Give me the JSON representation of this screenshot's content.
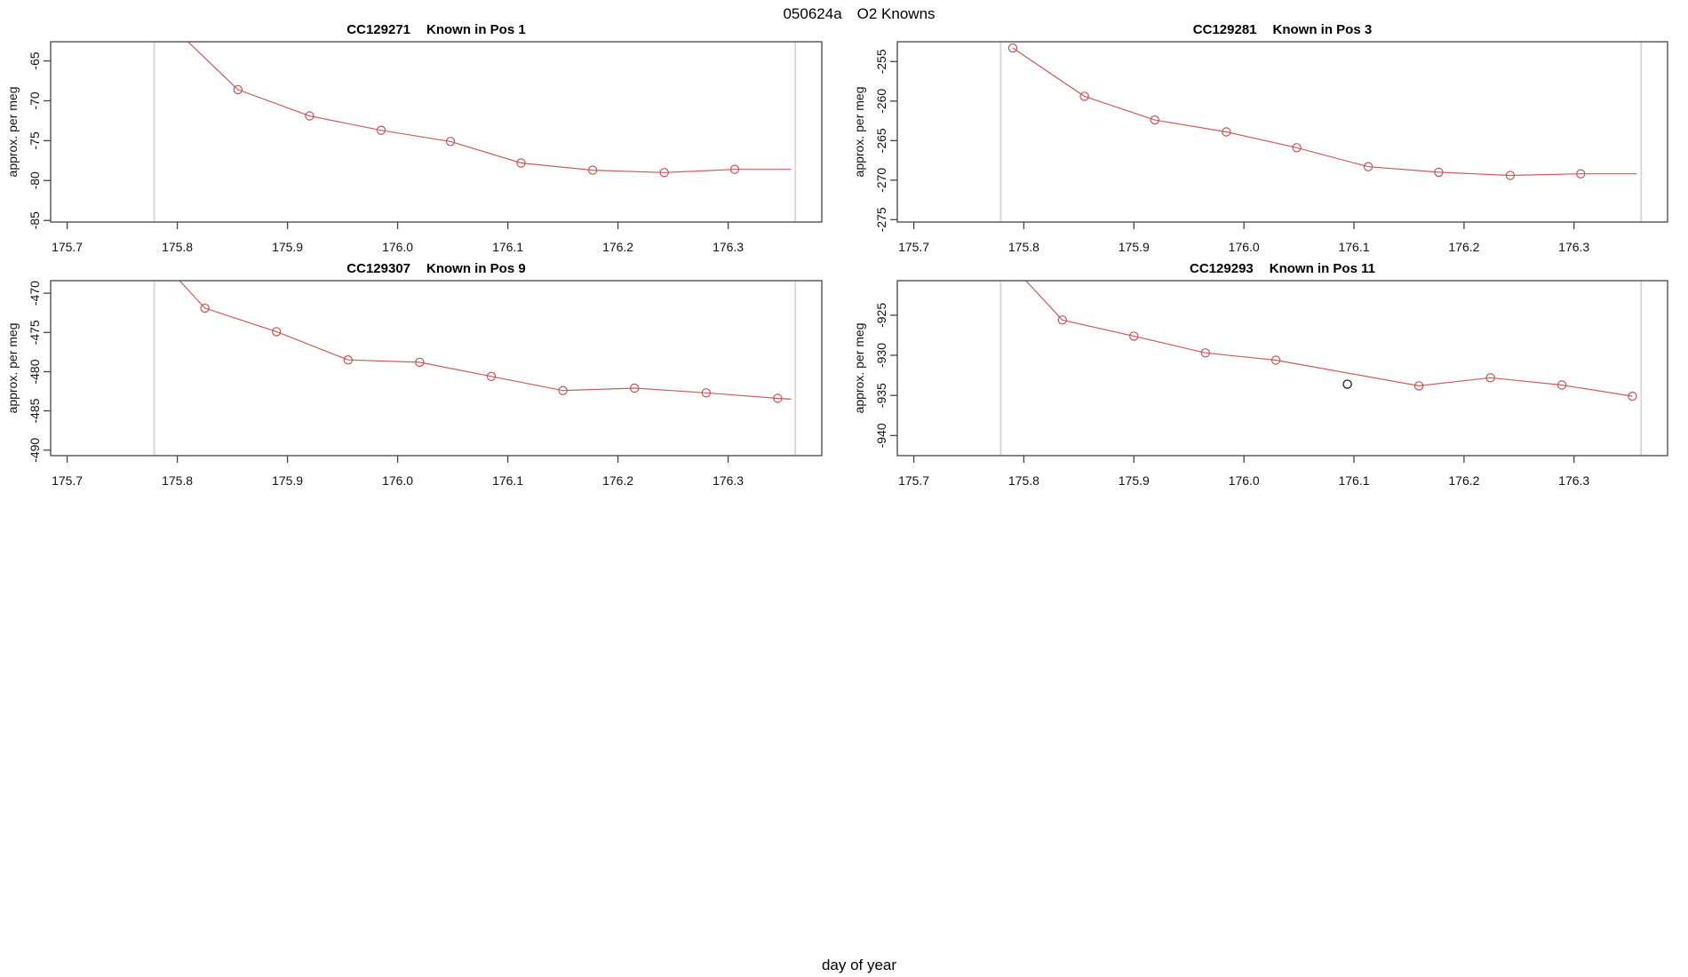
{
  "header": {
    "title": "050624a  O2 Knowns"
  },
  "footer": {
    "xlabel": "day of year"
  },
  "colors": {
    "series": "#c65353",
    "outlier": "#1a1a1a",
    "guide": "#d8d8d8",
    "axis": "#444444",
    "background": "#ffffff"
  },
  "chart_data": [
    {
      "type": "line",
      "code": "CC129271",
      "pos_label": "Known in Pos 1",
      "title": "CC129271    Known in Pos 1",
      "ylabel": "approx. per meg",
      "xlim": [
        175.685,
        176.385
      ],
      "ylim": [
        -85.2,
        -62.6
      ],
      "x_ticks": [
        175.7,
        175.8,
        175.9,
        176.0,
        176.1,
        176.2,
        176.3
      ],
      "y_ticks": [
        -65,
        -70,
        -75,
        -80,
        -85
      ],
      "guides": [
        175.779,
        176.361
      ],
      "x": [
        175.79,
        175.855,
        175.92,
        175.985,
        176.048,
        176.112,
        176.177,
        176.242,
        176.306,
        176.357
      ],
      "y": [
        -60.0,
        -68.6,
        -71.9,
        -73.7,
        -75.1,
        -77.8,
        -78.7,
        -79.0,
        -78.6,
        -78.6
      ],
      "marker": [
        false,
        true,
        true,
        true,
        true,
        true,
        true,
        true,
        true,
        false
      ]
    },
    {
      "type": "line",
      "code": "CC129281",
      "pos_label": "Known in Pos 3",
      "title": "CC129281    Known in Pos 3",
      "ylabel": "approx. per meg",
      "xlim": [
        175.685,
        176.385
      ],
      "ylim": [
        -275.3,
        -252.5
      ],
      "x_ticks": [
        175.7,
        175.8,
        175.9,
        176.0,
        176.1,
        176.2,
        176.3
      ],
      "y_ticks": [
        -255,
        -260,
        -265,
        -270,
        -275
      ],
      "guides": [
        175.779,
        176.361
      ],
      "x": [
        175.79,
        175.855,
        175.919,
        175.984,
        176.048,
        176.113,
        176.177,
        176.242,
        176.306,
        176.357
      ],
      "y": [
        -253.3,
        -259.4,
        -262.4,
        -263.9,
        -265.9,
        -268.3,
        -269.0,
        -269.4,
        -269.2,
        -269.2
      ],
      "marker": [
        true,
        true,
        true,
        true,
        true,
        true,
        true,
        true,
        true,
        false
      ]
    },
    {
      "type": "line",
      "code": "CC129307",
      "pos_label": "Known in Pos 9",
      "title": "CC129307    Known in Pos 9",
      "ylabel": "approx. per meg",
      "xlim": [
        175.685,
        176.385
      ],
      "ylim": [
        -490.7,
        -468.4
      ],
      "x_ticks": [
        175.7,
        175.8,
        175.9,
        176.0,
        176.1,
        176.2,
        176.3
      ],
      "y_ticks": [
        -470,
        -475,
        -480,
        -485,
        -490
      ],
      "guides": [
        175.779,
        176.361
      ],
      "x": [
        175.76,
        175.825,
        175.89,
        175.955,
        176.02,
        176.085,
        176.15,
        176.215,
        176.28,
        176.345,
        176.357
      ],
      "y": [
        -462.0,
        -471.9,
        -474.9,
        -478.5,
        -478.8,
        -480.6,
        -482.4,
        -482.1,
        -482.7,
        -483.4,
        -483.5
      ],
      "marker": [
        false,
        true,
        true,
        true,
        true,
        true,
        true,
        true,
        true,
        true,
        false
      ]
    },
    {
      "type": "line",
      "code": "CC129293",
      "pos_label": "Known in Pos 11",
      "title": "CC129293    Known in Pos 11",
      "ylabel": "approx. per meg",
      "xlim": [
        175.685,
        176.385
      ],
      "ylim": [
        -942.5,
        -920.7
      ],
      "x_ticks": [
        175.7,
        175.8,
        175.9,
        176.0,
        176.1,
        176.2,
        176.3
      ],
      "y_ticks": [
        -925,
        -930,
        -935,
        -940
      ],
      "guides": [
        175.779,
        176.361
      ],
      "x": [
        175.77,
        175.835,
        175.9,
        175.965,
        176.029,
        176.159,
        176.224,
        176.289,
        176.353
      ],
      "y": [
        -916.0,
        -925.6,
        -927.6,
        -929.7,
        -930.6,
        -933.8,
        -932.8,
        -933.7,
        -935.1
      ],
      "marker": [
        false,
        true,
        true,
        true,
        true,
        true,
        true,
        true,
        true
      ],
      "outlier": {
        "x": 176.094,
        "y": -933.6
      }
    }
  ]
}
